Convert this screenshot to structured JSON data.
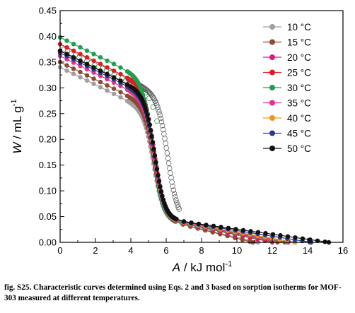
{
  "caption": "fig. S25. Characteristic curves determined using Eqs. 2 and 3 based on sorption isotherms for MOF-303 measured at different temperatures.",
  "chart_data": {
    "type": "scatter",
    "xlabel": {
      "symbol": "A",
      "unit_prefix": " / kJ mol",
      "unit_exp": "-1"
    },
    "ylabel": {
      "symbol": "W",
      "unit_prefix": " / mL g",
      "unit_exp": "-1"
    },
    "xlim": [
      0,
      16
    ],
    "ylim": [
      0,
      0.45
    ],
    "xticks": [
      0,
      2,
      4,
      6,
      8,
      10,
      12,
      14,
      16
    ],
    "xtick_labels": [
      "0",
      "2",
      "4",
      "6",
      "8",
      "10",
      "12",
      "14",
      "16"
    ],
    "yticks": [
      0,
      0.05,
      0.1,
      0.15,
      0.2,
      0.25,
      0.3,
      0.35,
      0.4,
      0.45
    ],
    "ytick_labels": [
      "0.00",
      "0.05",
      "0.10",
      "0.15",
      "0.20",
      "0.25",
      "0.30",
      "0.35",
      "0.40",
      "0.45"
    ],
    "grid": false,
    "legend_position": "top-right",
    "open_markers_color": "#2e9a55",
    "series": [
      {
        "name": "10 °C",
        "color": "#a0a0a0",
        "wmax": 0.34,
        "amax": 11.2,
        "aoff": 0.0
      },
      {
        "name": "15 °C",
        "color": "#8b4a32",
        "wmax": 0.35,
        "amax": 10.9,
        "aoff": 0.03
      },
      {
        "name": "20 °C",
        "color": "#e8157e",
        "wmax": 0.372,
        "amax": 12.0,
        "aoff": 0.05
      },
      {
        "name": "25 °C",
        "color": "#e21b23",
        "wmax": 0.385,
        "amax": 12.3,
        "aoff": 0.04
      },
      {
        "name": "30 °C",
        "color": "#1f9f4c",
        "wmax": 0.398,
        "amax": 12.7,
        "aoff": -0.05
      },
      {
        "name": "35 °C",
        "color": "#ec2f8a",
        "wmax": 0.362,
        "amax": 12.9,
        "aoff": 0.05
      },
      {
        "name": "40 °C",
        "color": "#f39221",
        "wmax": 0.372,
        "amax": 13.3,
        "aoff": 0.04
      },
      {
        "name": "45 °C",
        "color": "#263b8f",
        "wmax": 0.368,
        "amax": 14.2,
        "aoff": 0.06
      },
      {
        "name": "50 °C",
        "color": "#111111",
        "wmax": 0.372,
        "amax": 15.2,
        "aoff": 0.08
      }
    ]
  }
}
